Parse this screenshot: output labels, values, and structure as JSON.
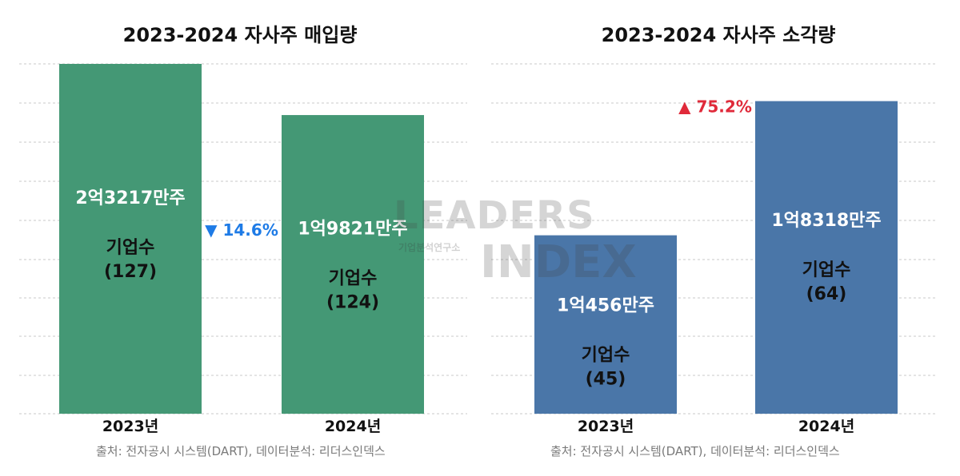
{
  "charts": [
    {
      "title": "2023-2024 자사주 매입량",
      "bar_color": "#449875",
      "source": "출처: 전자공시 시스템(DART), 데이터분석: 리더스인덱스",
      "change_label": "▼ 14.6%",
      "change_color": "#1e7be6"
    },
    {
      "title": "2023-2024 자사주 소각량",
      "bar_color": "#4a76a8",
      "source": "출처: 전자공시 시스템(DART), 데이터분석: 리더스인덱스",
      "change_label": "▲ 75.2%",
      "change_color": "#e02a3a"
    }
  ],
  "watermark": {
    "line1": "LEADERS",
    "line2": "기업분석연구소",
    "line3": "INDEX"
  },
  "chart_data": [
    {
      "type": "bar",
      "title": "2023-2024 자사주 매입량",
      "categories": [
        "2023년",
        "2024년"
      ],
      "values": [
        232170000,
        198210000
      ],
      "value_labels": [
        "2억3217만주",
        "1억9821만주"
      ],
      "sub_labels": [
        "기업수",
        "기업수"
      ],
      "company_counts": [
        "(127)",
        "(124)"
      ],
      "ylim": [
        0,
        232170000
      ],
      "grid": true,
      "change": "▼ 14.6%"
    },
    {
      "type": "bar",
      "title": "2023-2024 자사주 소각량",
      "categories": [
        "2023년",
        "2024년"
      ],
      "values": [
        104560000,
        183180000
      ],
      "value_labels": [
        "1억456만주",
        "1억8318만주"
      ],
      "sub_labels": [
        "기업수",
        "기업수"
      ],
      "company_counts": [
        "(45)",
        "(64)"
      ],
      "ylim": [
        0,
        205000000
      ],
      "grid": true,
      "change": "▲ 75.2%"
    }
  ]
}
